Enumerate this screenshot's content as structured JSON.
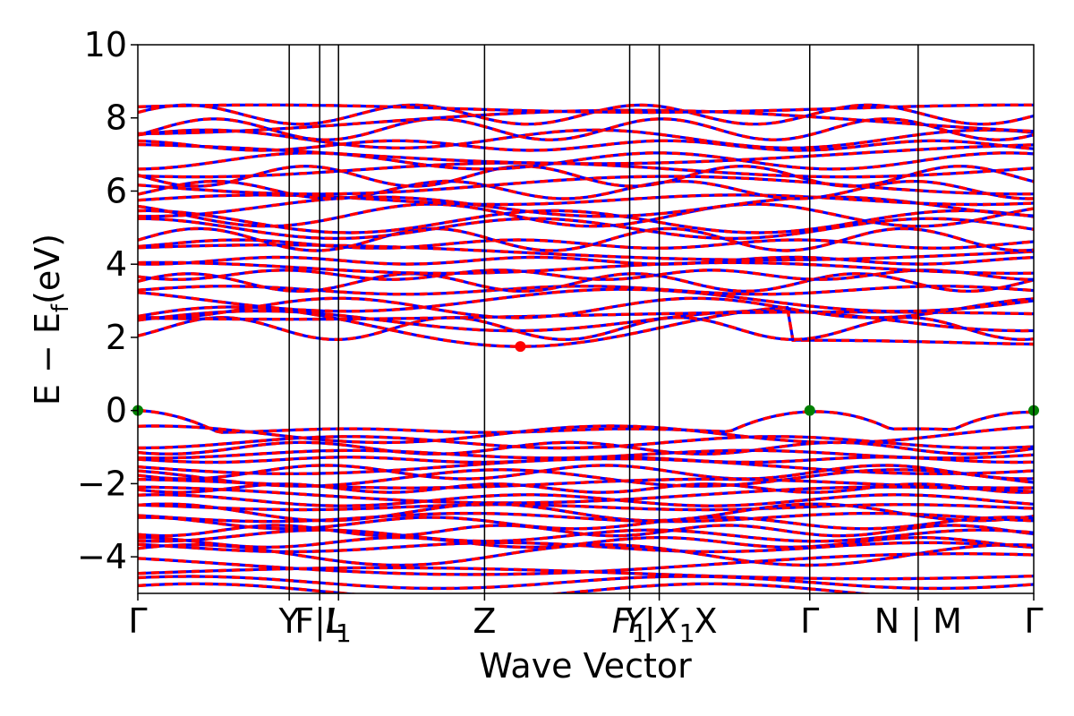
{
  "chart_data": {
    "type": "line",
    "xlabel": "Wave Vector",
    "ylabel_main": "E − E",
    "ylabel_sub": "f",
    "ylabel_unit": "(eV)",
    "ylim": [
      -5,
      10
    ],
    "yticks": [
      {
        "value": 10,
        "label": "10"
      },
      {
        "value": 8,
        "label": "8"
      },
      {
        "value": 6,
        "label": "6"
      },
      {
        "value": 4,
        "label": "4"
      },
      {
        "value": 2,
        "label": "2"
      },
      {
        "value": 0,
        "label": "0"
      },
      {
        "value": -2,
        "label": "−2"
      },
      {
        "value": -4,
        "label": "−4"
      }
    ],
    "kpath_ticks": [
      {
        "pos": 0.0,
        "label": "Γ",
        "italic": false,
        "sub": ""
      },
      {
        "pos": 0.169,
        "label": "Y",
        "italic": false,
        "sub": ""
      },
      {
        "pos": 0.203,
        "label": "F|L",
        "italic": false,
        "sub": ""
      },
      {
        "pos": 0.224,
        "label": "I",
        "italic": true,
        "sub": "1"
      },
      {
        "pos": 0.387,
        "label": "Z",
        "italic": false,
        "sub": ""
      },
      {
        "pos": 0.549,
        "label": "F",
        "italic": true,
        "sub": "1"
      },
      {
        "pos": 0.582,
        "label": "Y|X",
        "italic": true,
        "sub": "1"
      },
      {
        "pos": 0.75,
        "label": "Γ",
        "italic": false,
        "sub": ""
      },
      {
        "pos": 0.871,
        "label": "N | M",
        "italic": false,
        "sub": ""
      },
      {
        "pos": 1.0,
        "label": "Γ",
        "italic": false,
        "sub": ""
      }
    ],
    "kpath_extra_label": "X",
    "series": [
      {
        "style": "solid",
        "color": "#0000ff"
      },
      {
        "style": "dashed",
        "color": "#ff0000"
      }
    ],
    "valence_band_max": [
      {
        "k": 0.0,
        "E": 0.0
      },
      {
        "k": 0.75,
        "E": 0.0
      },
      {
        "k": 1.0,
        "E": 0.0
      }
    ],
    "conduction_band_min": {
      "k": 0.427,
      "E": 1.75
    },
    "vbm_color": "#008000",
    "cbm_color": "#ff0000",
    "grid": false
  }
}
